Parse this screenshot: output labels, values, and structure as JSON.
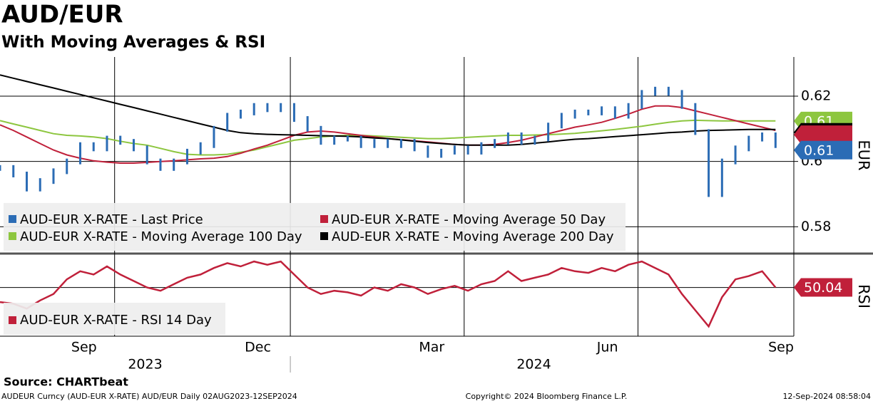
{
  "chart_data": {
    "type": "line",
    "title": "AUD/EUR",
    "subtitle": "With Moving Averages & RSI",
    "source": "Source: CHARTbeat",
    "footer_left": "AUDEUR Curncy (AUD-EUR X-RATE) AUD/EUR  Daily 02AUG2023-12SEP2024",
    "footer_center": "Copyright© 2024 Bloomberg Finance L.P.",
    "footer_right": "12-Sep-2024 08:58:04",
    "xlim": [
      "2023-08-02",
      "2024-09-12"
    ],
    "xticks": [
      {
        "value": "2023-09",
        "label": "Sep"
      },
      {
        "value": "2023-12",
        "label": "Dec"
      },
      {
        "value": "2024-03",
        "label": "Mar"
      },
      {
        "value": "2024-06",
        "label": "Jun"
      },
      {
        "value": "2024-09",
        "label": "Sep"
      }
    ],
    "years": [
      {
        "value": "2023",
        "label": "2023"
      },
      {
        "value": "2024",
        "label": "2024"
      }
    ],
    "x_grid": [
      "2023-10",
      "2024-01",
      "2024-04",
      "2024-07"
    ],
    "x": [
      "2023-08-02",
      "2023-08-09",
      "2023-08-16",
      "2023-08-23",
      "2023-08-30",
      "2023-09-06",
      "2023-09-13",
      "2023-09-20",
      "2023-09-27",
      "2023-10-04",
      "2023-10-11",
      "2023-10-18",
      "2023-10-25",
      "2023-11-01",
      "2023-11-08",
      "2023-11-15",
      "2023-11-22",
      "2023-11-29",
      "2023-12-06",
      "2023-12-13",
      "2023-12-20",
      "2023-12-27",
      "2024-01-03",
      "2024-01-10",
      "2024-01-17",
      "2024-01-24",
      "2024-01-31",
      "2024-02-07",
      "2024-02-14",
      "2024-02-21",
      "2024-02-28",
      "2024-03-06",
      "2024-03-13",
      "2024-03-20",
      "2024-03-27",
      "2024-04-03",
      "2024-04-10",
      "2024-04-17",
      "2024-04-24",
      "2024-05-01",
      "2024-05-08",
      "2024-05-15",
      "2024-05-22",
      "2024-05-29",
      "2024-06-05",
      "2024-06-12",
      "2024-06-19",
      "2024-06-26",
      "2024-07-03",
      "2024-07-10",
      "2024-07-17",
      "2024-07-24",
      "2024-07-31",
      "2024-08-07",
      "2024-08-14",
      "2024-08-21",
      "2024-08-28",
      "2024-09-04",
      "2024-09-11"
    ],
    "panels": [
      {
        "axis_label": "EUR",
        "ylim": [
          0.572,
          0.632
        ],
        "yticks": [
          0.58,
          0.6,
          0.62
        ],
        "series": [
          {
            "name": "AUD-EUR X-RATE - Last Price",
            "color": "#2b6cb5",
            "style": "bars",
            "last_value_label": "0.61",
            "values": [
              0.598,
              0.596,
              0.5917,
              0.594,
              0.597,
              0.6,
              0.605,
              0.604,
              0.607,
              0.606,
              0.604,
              0.6,
              0.598,
              0.6,
              0.603,
              0.605,
              0.61,
              0.614,
              0.615,
              0.617,
              0.616,
              0.617,
              0.613,
              0.61,
              0.606,
              0.607,
              0.607,
              0.605,
              0.606,
              0.605,
              0.606,
              0.604,
              0.602,
              0.603,
              0.604,
              0.603,
              0.605,
              0.606,
              0.608,
              0.606,
              0.607,
              0.611,
              0.614,
              0.615,
              0.615,
              0.616,
              0.614,
              0.617,
              0.621,
              0.622,
              0.621,
              0.617,
              0.609,
              0.59,
              0.6,
              0.604,
              0.607,
              0.608,
              0.605
            ]
          },
          {
            "name": "AUD-EUR X-RATE - Moving Average 100 Day",
            "color": "#8dc63f",
            "style": "line",
            "last_value_label": "0.61",
            "values": [
              0.6125,
              0.6115,
              0.6105,
              0.6095,
              0.6085,
              0.608,
              0.6078,
              0.6075,
              0.607,
              0.6062,
              0.6055,
              0.605,
              0.604,
              0.603,
              0.6022,
              0.602,
              0.602,
              0.6022,
              0.6028,
              0.6035,
              0.6045,
              0.6055,
              0.6065,
              0.607,
              0.6075,
              0.6078,
              0.608,
              0.608,
              0.6078,
              0.6076,
              0.6074,
              0.6072,
              0.607,
              0.607,
              0.6072,
              0.6074,
              0.6076,
              0.6078,
              0.608,
              0.608,
              0.6081,
              0.6082,
              0.6084,
              0.6086,
              0.609,
              0.6094,
              0.6098,
              0.6103,
              0.6108,
              0.6114,
              0.612,
              0.6124,
              0.6126,
              0.6125,
              0.6124,
              0.6124,
              0.6124,
              0.6124,
              0.6124
            ]
          },
          {
            "name": "AUD-EUR X-RATE - Moving Average 50 Day",
            "color": "#c0203a",
            "style": "line",
            "values": [
              0.6112,
              0.6095,
              0.6075,
              0.6055,
              0.6035,
              0.602,
              0.601,
              0.6002,
              0.5998,
              0.5995,
              0.5995,
              0.5997,
              0.6,
              0.6002,
              0.6005,
              0.6008,
              0.601,
              0.6015,
              0.6025,
              0.6038,
              0.605,
              0.6065,
              0.608,
              0.609,
              0.6093,
              0.609,
              0.6085,
              0.608,
              0.6075,
              0.607,
              0.6067,
              0.6063,
              0.606,
              0.6056,
              0.6052,
              0.605,
              0.605,
              0.6052,
              0.6058,
              0.6065,
              0.6075,
              0.6085,
              0.6095,
              0.6105,
              0.6112,
              0.612,
              0.6132,
              0.6145,
              0.616,
              0.617,
              0.617,
              0.6165,
              0.6155,
              0.6145,
              0.6135,
              0.6125,
              0.6115,
              0.6105,
              0.6095
            ]
          },
          {
            "name": "AUD-EUR X-RATE - Moving Average 200 Day",
            "color": "#000000",
            "style": "line",
            "values": [
              0.6265,
              0.6255,
              0.6245,
              0.6235,
              0.6225,
              0.6215,
              0.6205,
              0.6195,
              0.6185,
              0.6175,
              0.6165,
              0.6155,
              0.6145,
              0.6135,
              0.6125,
              0.6115,
              0.6105,
              0.6095,
              0.6088,
              0.6085,
              0.6083,
              0.6082,
              0.6081,
              0.608,
              0.6079,
              0.6078,
              0.6077,
              0.6075,
              0.6072,
              0.607,
              0.6066,
              0.6062,
              0.6058,
              0.6055,
              0.6052,
              0.605,
              0.605,
              0.605,
              0.605,
              0.6052,
              0.6056,
              0.606,
              0.6064,
              0.6068,
              0.607,
              0.6073,
              0.6076,
              0.6079,
              0.6082,
              0.6085,
              0.6088,
              0.609,
              0.6093,
              0.6095,
              0.6096,
              0.6097,
              0.6098,
              0.6098,
              0.6098
            ]
          }
        ]
      },
      {
        "axis_label": "RSI",
        "ylim": [
          20,
          70
        ],
        "grid_lines": [
          50
        ],
        "series": [
          {
            "name": "AUD-EUR X-RATE - RSI 14 Day",
            "color": "#c0203a",
            "style": "line",
            "last_value_label": "50.04",
            "values": [
              41,
              40,
              37,
              42,
              46,
              55,
              60,
              58,
              63,
              58,
              54,
              50,
              48,
              52,
              56,
              58,
              62,
              65,
              63,
              66,
              64,
              66,
              58,
              50,
              46,
              48,
              47,
              45,
              50,
              48,
              52,
              50,
              46,
              49,
              51,
              48,
              52,
              54,
              60,
              54,
              56,
              58,
              62,
              60,
              59,
              62,
              60,
              64,
              66,
              62,
              58,
              46,
              36,
              26,
              44,
              55,
              57,
              60,
              50.04
            ]
          }
        ]
      }
    ]
  }
}
